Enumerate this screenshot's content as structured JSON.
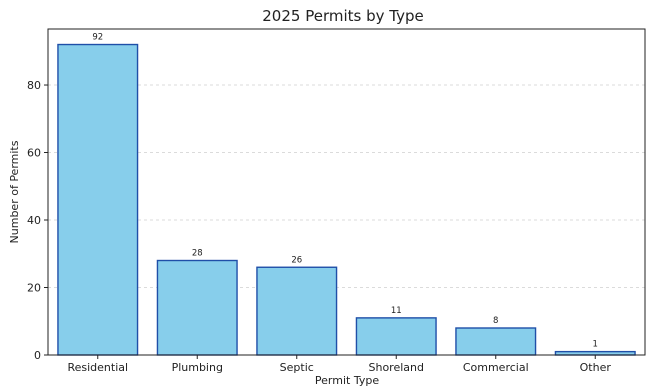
{
  "chart_data": {
    "type": "bar",
    "title": "2025 Permits by Type",
    "xlabel": "Permit Type",
    "ylabel": "Number of Permits",
    "categories": [
      "Residential",
      "Plumbing",
      "Septic",
      "Shoreland",
      "Commercial",
      "Other"
    ],
    "values": [
      92,
      28,
      26,
      11,
      8,
      1
    ],
    "ylim": [
      0,
      96.6
    ],
    "yticks": [
      0,
      20,
      40,
      60,
      80
    ],
    "grid": "horizontal-dashed",
    "bar_color": "#87CEEB",
    "bar_edge_color": "#1F4FA8",
    "data_labels": true
  }
}
